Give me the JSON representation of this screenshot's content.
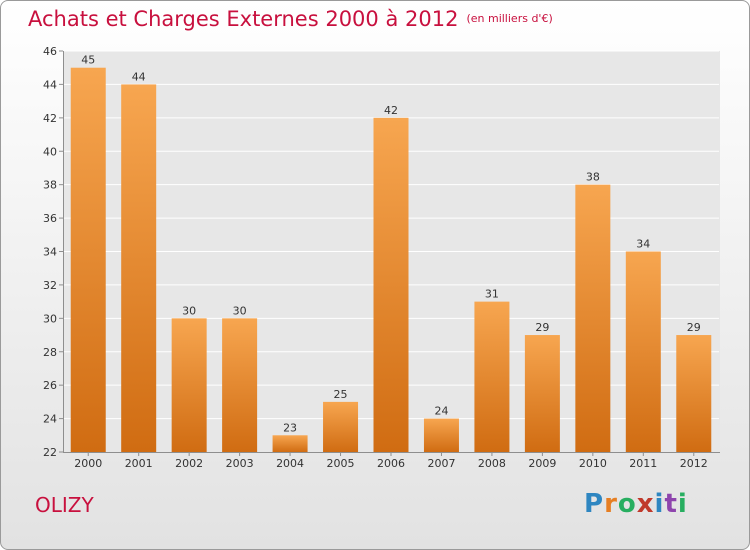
{
  "title": "Achats et Charges Externes 2000 à 2012",
  "unit": "(en milliers d'€)",
  "commune": "OLIZY",
  "brand": {
    "text": "Proxiti",
    "letter_colors": [
      "#2e86c1",
      "#e67e22",
      "#27ae60",
      "#c0392b",
      "#2e86c1",
      "#8e44ad",
      "#27ae60"
    ]
  },
  "colors": {
    "title": "#c8103e",
    "bar_light": "#f7a650",
    "bar_dark": "#d06c12",
    "axis": "#8e8e8e",
    "gridline": "#ffffff",
    "label": "#333333"
  },
  "chart_data": {
    "type": "bar",
    "categories": [
      "2000",
      "2001",
      "2002",
      "2003",
      "2004",
      "2005",
      "2006",
      "2007",
      "2008",
      "2009",
      "2010",
      "2011",
      "2012"
    ],
    "values": [
      45,
      44,
      30,
      30,
      23,
      25,
      42,
      24,
      31,
      29,
      38,
      34,
      29
    ],
    "data_labels": [
      "45",
      "44",
      "30",
      "30",
      "23",
      "25",
      "42",
      "24",
      "31",
      "29",
      "38",
      "34",
      "29"
    ],
    "title": "Achats et Charges Externes 2000 à 2012",
    "subtitle": "(en milliers d'€)",
    "xlabel": "",
    "ylabel": "",
    "ylim": [
      22,
      46
    ],
    "yticks": [
      22,
      24,
      26,
      28,
      30,
      32,
      34,
      36,
      38,
      40,
      42,
      44,
      46
    ],
    "grid": true,
    "legend": "none"
  }
}
